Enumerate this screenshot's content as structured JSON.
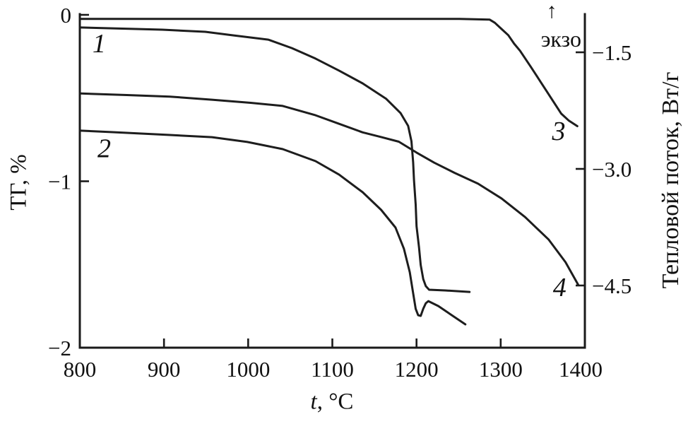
{
  "figure": {
    "background": "#ffffff",
    "line_color": "#1d1d1d",
    "text_color": "#111111"
  },
  "chart_data": {
    "type": "line",
    "xlabel": "t, °C",
    "xlabel_parts": {
      "italic": "t",
      "rest": ", °C"
    },
    "ylabel_left": "ТГ, %",
    "ylabel_right": "Тепловой поток, Вт/г",
    "annotation": {
      "arrow": "↑",
      "exo": "экзо"
    },
    "x_axis": {
      "min": 800,
      "max": 1400,
      "tick_values": [
        800,
        900,
        1000,
        1100,
        1200,
        1300,
        1400
      ],
      "tick_labels": [
        "800",
        "900",
        "1000",
        "1100",
        "1200",
        "1300",
        "1400"
      ]
    },
    "left_axis": {
      "min": -2,
      "max": 0,
      "tick_values": [
        0,
        -1,
        -2
      ],
      "tick_labels": [
        "0",
        "−1",
        "−2"
      ]
    },
    "right_axis": {
      "tick_values": [
        -1.5,
        -3.0,
        -4.5
      ],
      "tick_labels": [
        "−1.5",
        "−3.0",
        "−4.5"
      ]
    },
    "series": [
      {
        "id": "tg-1",
        "label": "1",
        "axis": "left",
        "unit": "%",
        "label_at": [
          823,
          -0.17
        ],
        "points": [
          [
            801,
            -0.076
          ],
          [
            839,
            -0.081
          ],
          [
            898,
            -0.089
          ],
          [
            949,
            -0.102
          ],
          [
            982,
            -0.123
          ],
          [
            1024,
            -0.149
          ],
          [
            1052,
            -0.2
          ],
          [
            1080,
            -0.263
          ],
          [
            1108,
            -0.335
          ],
          [
            1136,
            -0.412
          ],
          [
            1164,
            -0.505
          ],
          [
            1181,
            -0.59
          ],
          [
            1190,
            -0.667
          ],
          [
            1194,
            -0.76
          ],
          [
            1196,
            -0.887
          ],
          [
            1197,
            -0.994
          ],
          [
            1199,
            -1.142
          ],
          [
            1200,
            -1.27
          ],
          [
            1203,
            -1.397
          ],
          [
            1205,
            -1.503
          ],
          [
            1208,
            -1.588
          ],
          [
            1211,
            -1.63
          ],
          [
            1215,
            -1.652
          ],
          [
            1234,
            -1.656
          ],
          [
            1263,
            -1.665
          ]
        ]
      },
      {
        "id": "tg-2",
        "label": "2",
        "axis": "left",
        "unit": "%",
        "label_at": [
          829,
          -0.8
        ],
        "points": [
          [
            801,
            -0.696
          ],
          [
            839,
            -0.705
          ],
          [
            907,
            -0.722
          ],
          [
            957,
            -0.735
          ],
          [
            999,
            -0.764
          ],
          [
            1041,
            -0.807
          ],
          [
            1080,
            -0.879
          ],
          [
            1108,
            -0.96
          ],
          [
            1136,
            -1.066
          ],
          [
            1158,
            -1.172
          ],
          [
            1175,
            -1.278
          ],
          [
            1185,
            -1.405
          ],
          [
            1192,
            -1.546
          ],
          [
            1196,
            -1.673
          ],
          [
            1199,
            -1.767
          ],
          [
            1202,
            -1.805
          ],
          [
            1205,
            -1.809
          ],
          [
            1208,
            -1.766
          ],
          [
            1211,
            -1.733
          ],
          [
            1214,
            -1.72
          ],
          [
            1226,
            -1.75
          ],
          [
            1242,
            -1.805
          ],
          [
            1258,
            -1.86
          ]
        ]
      },
      {
        "id": "hf-3",
        "label": "3",
        "axis": "right",
        "unit": "Вт/г",
        "label_at": [
          1369,
          -2.51
        ],
        "points": [
          [
            801,
            -1.07
          ],
          [
            1041,
            -1.07
          ],
          [
            1251,
            -1.07
          ],
          [
            1287,
            -1.08
          ],
          [
            1293,
            -1.12
          ],
          [
            1301,
            -1.2
          ],
          [
            1309,
            -1.28
          ],
          [
            1316,
            -1.39
          ],
          [
            1323,
            -1.48
          ],
          [
            1336,
            -1.69
          ],
          [
            1348,
            -1.89
          ],
          [
            1360,
            -2.09
          ],
          [
            1372,
            -2.29
          ],
          [
            1381,
            -2.38
          ],
          [
            1391,
            -2.45
          ]
        ]
      },
      {
        "id": "hf-4",
        "label": "4",
        "axis": "right",
        "unit": "Вт/г",
        "label_at": [
          1370,
          -4.52
        ],
        "points": [
          [
            801,
            -2.03
          ],
          [
            856,
            -2.05
          ],
          [
            907,
            -2.07
          ],
          [
            957,
            -2.11
          ],
          [
            1003,
            -2.15
          ],
          [
            1041,
            -2.19
          ],
          [
            1080,
            -2.31
          ],
          [
            1108,
            -2.42
          ],
          [
            1136,
            -2.53
          ],
          [
            1158,
            -2.59
          ],
          [
            1179,
            -2.65
          ],
          [
            1200,
            -2.79
          ],
          [
            1221,
            -2.92
          ],
          [
            1245,
            -3.05
          ],
          [
            1273,
            -3.19
          ],
          [
            1301,
            -3.38
          ],
          [
            1329,
            -3.62
          ],
          [
            1357,
            -3.91
          ],
          [
            1377,
            -4.2
          ],
          [
            1392,
            -4.49
          ]
        ]
      }
    ]
  }
}
